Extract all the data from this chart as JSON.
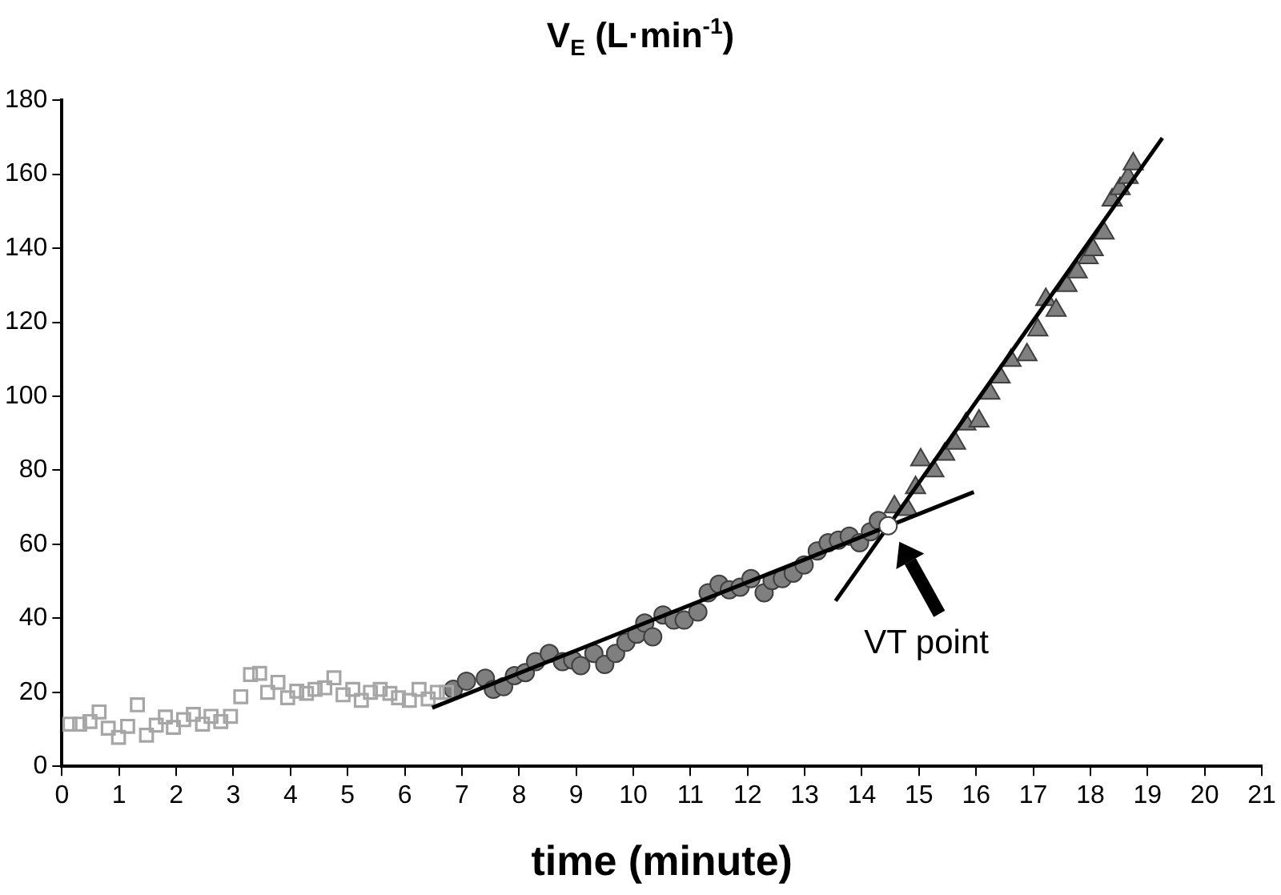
{
  "chart_data": {
    "type": "scatter",
    "title": "V$_{E}$ (L·min$^{-1}$)",
    "xlabel": "time (minute)",
    "xlim": [
      0,
      21
    ],
    "xticks": [
      0,
      1,
      2,
      3,
      4,
      5,
      6,
      7,
      8,
      9,
      10,
      11,
      12,
      13,
      14,
      15,
      16,
      17,
      18,
      19,
      20,
      21
    ],
    "ylim": [
      0,
      180
    ],
    "yticks": [
      0,
      20,
      40,
      60,
      80,
      100,
      120,
      140,
      160,
      180
    ],
    "grid": false,
    "legend": false,
    "series": [
      {
        "marker": "square",
        "color": "#a6a6a6",
        "x": [
          0.14,
          0.31,
          0.49,
          0.65,
          0.81,
          0.99,
          1.15,
          1.32,
          1.48,
          1.65,
          1.81,
          1.95,
          2.13,
          2.3,
          2.46,
          2.61,
          2.78,
          2.95,
          3.13,
          3.3,
          3.46,
          3.6,
          3.78,
          3.95,
          4.11,
          4.28,
          4.43,
          4.6,
          4.76,
          4.92,
          5.09,
          5.24,
          5.4,
          5.57,
          5.74,
          5.89,
          6.08,
          6.25,
          6.41,
          6.57,
          6.73
        ],
        "values": [
          11.4,
          11.4,
          12.1,
          14.7,
          10.3,
          7.8,
          10.8,
          16.6,
          8.4,
          11.1,
          13.3,
          10.5,
          12.6,
          14,
          11.4,
          13.5,
          12.1,
          13.5,
          18.8,
          24.8,
          25.1,
          20,
          22.7,
          18.5,
          20.3,
          19.7,
          20.8,
          21.2,
          23.9,
          19.3,
          20.8,
          17.8,
          20,
          20.8,
          19.7,
          18.5,
          17.8,
          20.8,
          18.2,
          20,
          20
        ]
      },
      {
        "marker": "circle",
        "color": "#7f7f7f",
        "x": [
          6.85,
          7.08,
          7.41,
          7.55,
          7.73,
          7.92,
          8.11,
          8.29,
          8.53,
          8.76,
          8.94,
          9.08,
          9.31,
          9.5,
          9.69,
          9.87,
          10.06,
          10.2,
          10.34,
          10.52,
          10.71,
          10.89,
          11.13,
          11.31,
          11.5,
          11.68,
          11.87,
          12.06,
          12.29,
          12.43,
          12.61,
          12.8,
          12.99,
          13.22,
          13.41,
          13.59,
          13.78,
          13.96,
          14.15,
          14.29
        ],
        "values": [
          20.8,
          23,
          23.8,
          20.8,
          21.5,
          24.5,
          25.3,
          28.3,
          30.5,
          28.3,
          28.7,
          27.2,
          30.5,
          27.5,
          30.5,
          33.5,
          35.7,
          38.7,
          35,
          40.9,
          39.5,
          39.5,
          41.7,
          46.9,
          49.2,
          47.7,
          48.4,
          50.7,
          46.9,
          50.2,
          50.7,
          52.2,
          54.4,
          58.2,
          60.4,
          61.1,
          62.2,
          60.4,
          63.4,
          66.4
        ]
      },
      {
        "marker": "triangle",
        "color": "#7f7f7f",
        "x": [
          14.57,
          14.8,
          14.94,
          15.03,
          15.26,
          15.45,
          15.64,
          15.82,
          16.05,
          16.24,
          16.42,
          16.61,
          16.89,
          17.08,
          17.22,
          17.4,
          17.59,
          17.77,
          17.96,
          18.05,
          18.24,
          18.38,
          18.52,
          18.66,
          18.75
        ],
        "values": [
          70.1,
          69.4,
          75.3,
          82.8,
          79.8,
          84.3,
          87.3,
          92.5,
          93.3,
          100.8,
          105.2,
          109.7,
          111.2,
          117.9,
          126.1,
          123.2,
          129.9,
          133.6,
          137.4,
          139.6,
          144.1,
          153,
          156.1,
          159.1,
          162.8
        ]
      },
      {
        "type": "line",
        "marker": "none",
        "color": "#000000",
        "x": [
          6.48,
          15.96
        ],
        "values": [
          15.8,
          74.1
        ]
      },
      {
        "type": "line",
        "marker": "none",
        "color": "#000000",
        "x": [
          13.54,
          19.26
        ],
        "values": [
          44.7,
          169.8
        ]
      },
      {
        "marker": "circle",
        "color": "#ffffff",
        "x": [
          14.46
        ],
        "values": [
          65
        ]
      }
    ],
    "annotations": [
      {
        "text": "VT point",
        "x": 14.46,
        "y": 65
      }
    ]
  }
}
